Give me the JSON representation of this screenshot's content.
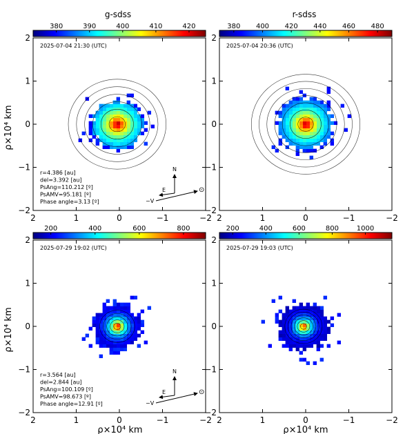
{
  "figure": {
    "panel_titles": [
      "g-sdss",
      "r-sdss"
    ],
    "y_axis_label": "ρ×10⁴ km",
    "x_axis_label": "ρ×10⁴ km"
  },
  "chart_data": [
    {
      "type": "heatmap",
      "title": "g-sdss",
      "timestamp": "2025-07-04 21:30 (UTC)",
      "colorbar": {
        "ticks": [
          "380",
          "390",
          "400",
          "410",
          "420"
        ],
        "range": [
          373,
          425
        ]
      },
      "xlim": [
        2,
        -2
      ],
      "ylim": [
        -2,
        2
      ],
      "x_ticks": [
        "2",
        "1",
        "0",
        "−1",
        "−2"
      ],
      "y_ticks": [
        "2",
        "1",
        "0",
        "−1",
        "−2"
      ],
      "coma": {
        "center": [
          0.05,
          0.0
        ],
        "core_extent": 0.6,
        "spread": 0.42,
        "contour_levels": 6
      },
      "info": [
        "r=4.386 [au]",
        "del=3.392 [au]",
        "PsAng=110.212 [º]",
        "PsAMV=95.181 [º]",
        "Phase angle=3.13 [º]"
      ],
      "compass": {
        "north": "N",
        "east": "E",
        "velocity": "−V",
        "sun": "⊙"
      }
    },
    {
      "type": "heatmap",
      "timestamp": "2025-07-04 20:36 (UTC)",
      "colorbar": {
        "ticks": [
          "380",
          "400",
          "420",
          "440",
          "460",
          "480"
        ],
        "range": [
          370,
          490
        ]
      },
      "xlim": [
        2,
        -2
      ],
      "ylim": [
        -2,
        2
      ],
      "x_ticks": [
        "2",
        "1",
        "0",
        "−1",
        "−2"
      ],
      "y_ticks": [
        "2",
        "1",
        "0",
        "−1",
        "−2"
      ],
      "coma": {
        "center": [
          0.0,
          0.0
        ],
        "core_extent": 0.65,
        "spread": 0.4,
        "contour_levels": 7
      }
    },
    {
      "type": "heatmap",
      "timestamp": "2025-07-29 19:02 (UTC)",
      "colorbar": {
        "ticks": [
          "200",
          "400",
          "600",
          "800"
        ],
        "range": [
          120,
          900
        ]
      },
      "xlim": [
        2,
        -2
      ],
      "ylim": [
        -2,
        2
      ],
      "x_ticks": [
        "2",
        "1",
        "0",
        "−1",
        "−2"
      ],
      "y_ticks": [
        "2",
        "1",
        "0",
        "−1",
        "−2"
      ],
      "coma": {
        "center": [
          0.05,
          0.0
        ],
        "core_extent": 0.55,
        "spread": 0.18,
        "contour_levels": 5
      },
      "info": [
        "r=3.564 [au]",
        "del=2.844 [au]",
        "PsAng=100.109 [º]",
        "PsAMV=98.673 [º]",
        "Phase angle=12.91 [º]"
      ],
      "compass": {
        "north": "N",
        "east": "E",
        "velocity": "−V",
        "sun": "⊙"
      }
    },
    {
      "type": "heatmap",
      "timestamp": "2025-07-29 19:03 (UTC)",
      "colorbar": {
        "ticks": [
          "200",
          "400",
          "600",
          "800",
          "1000"
        ],
        "range": [
          120,
          1160
        ]
      },
      "xlim": [
        2,
        -2
      ],
      "ylim": [
        -2,
        2
      ],
      "x_ticks": [
        "2",
        "1",
        "0",
        "−1",
        "−2"
      ],
      "y_ticks": [
        "2",
        "1",
        "0",
        "−1",
        "−2"
      ],
      "coma": {
        "center": [
          0.05,
          0.0
        ],
        "core_extent": 0.6,
        "spread": 0.16,
        "contour_levels": 6
      }
    }
  ],
  "colors": {
    "axis": "#000000",
    "background": "#ffffff"
  },
  "colormap": [
    "#00007f",
    "#0000ff",
    "#007fff",
    "#00ffff",
    "#7fff7f",
    "#ffff00",
    "#ff7f00",
    "#ff0000",
    "#7f0000"
  ]
}
